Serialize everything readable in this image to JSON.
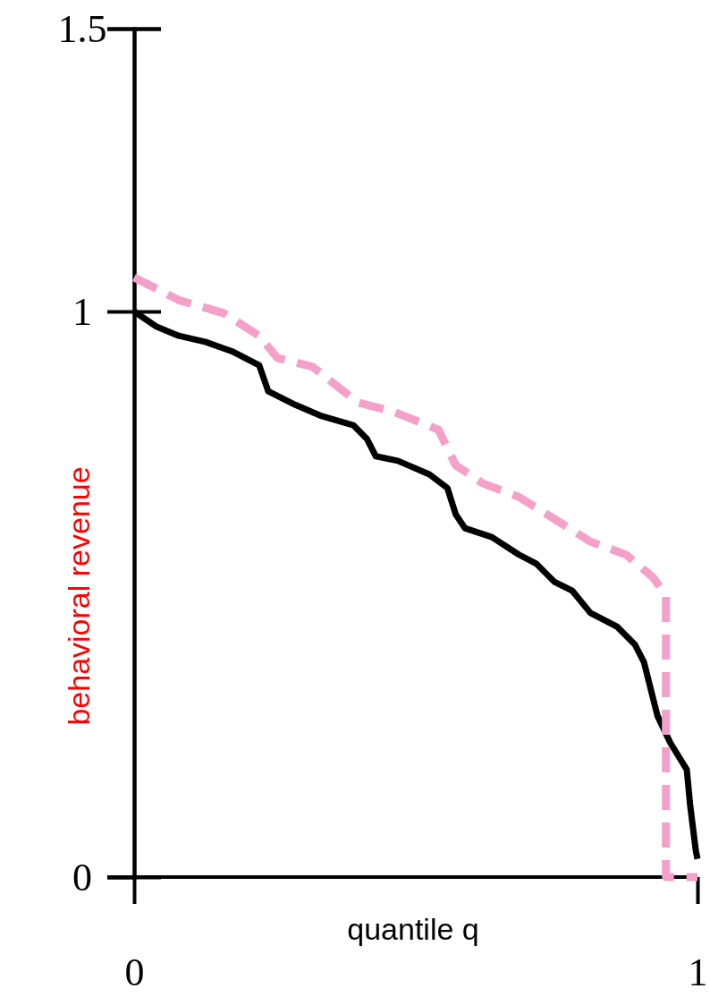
{
  "chart_data": {
    "type": "line",
    "xlabel": "quantile q",
    "ylabel": "behavioral revenue",
    "xlim": [
      0,
      1
    ],
    "ylim": [
      0,
      1.5
    ],
    "xticks": [
      0,
      1
    ],
    "yticks": [
      0,
      1,
      1.5
    ],
    "series": [
      {
        "color": "#000000",
        "line_style": "solid",
        "x": [
          0,
          0.04,
          0.079,
          0.127,
          0.175,
          0.222,
          0.238,
          0.286,
          0.333,
          0.389,
          0.413,
          0.429,
          0.468,
          0.524,
          0.556,
          0.571,
          0.587,
          0.635,
          0.683,
          0.714,
          0.746,
          0.778,
          0.81,
          0.857,
          0.889,
          0.905,
          0.929,
          0.952,
          0.981,
          0.987,
          0.997,
          1
        ],
        "values": [
          1.0,
          0.973,
          0.957,
          0.946,
          0.929,
          0.905,
          0.859,
          0.835,
          0.815,
          0.799,
          0.775,
          0.744,
          0.736,
          0.712,
          0.688,
          0.641,
          0.617,
          0.601,
          0.57,
          0.554,
          0.522,
          0.506,
          0.467,
          0.443,
          0.411,
          0.38,
          0.285,
          0.237,
          0.19,
          0.127,
          0.047,
          0.032
        ]
      },
      {
        "color": "#f4a0c8",
        "line_style": "dashed",
        "x": [
          0,
          0.04,
          0.079,
          0.159,
          0.222,
          0.254,
          0.317,
          0.397,
          0.46,
          0.54,
          0.571,
          0.619,
          0.683,
          0.746,
          0.81,
          0.873,
          0.921,
          0.944,
          0.944,
          1
        ],
        "values": [
          1.06,
          1.04,
          1.02,
          0.997,
          0.957,
          0.918,
          0.902,
          0.839,
          0.823,
          0.791,
          0.728,
          0.696,
          0.672,
          0.633,
          0.593,
          0.57,
          0.53,
          0.498,
          0,
          0
        ]
      }
    ]
  }
}
